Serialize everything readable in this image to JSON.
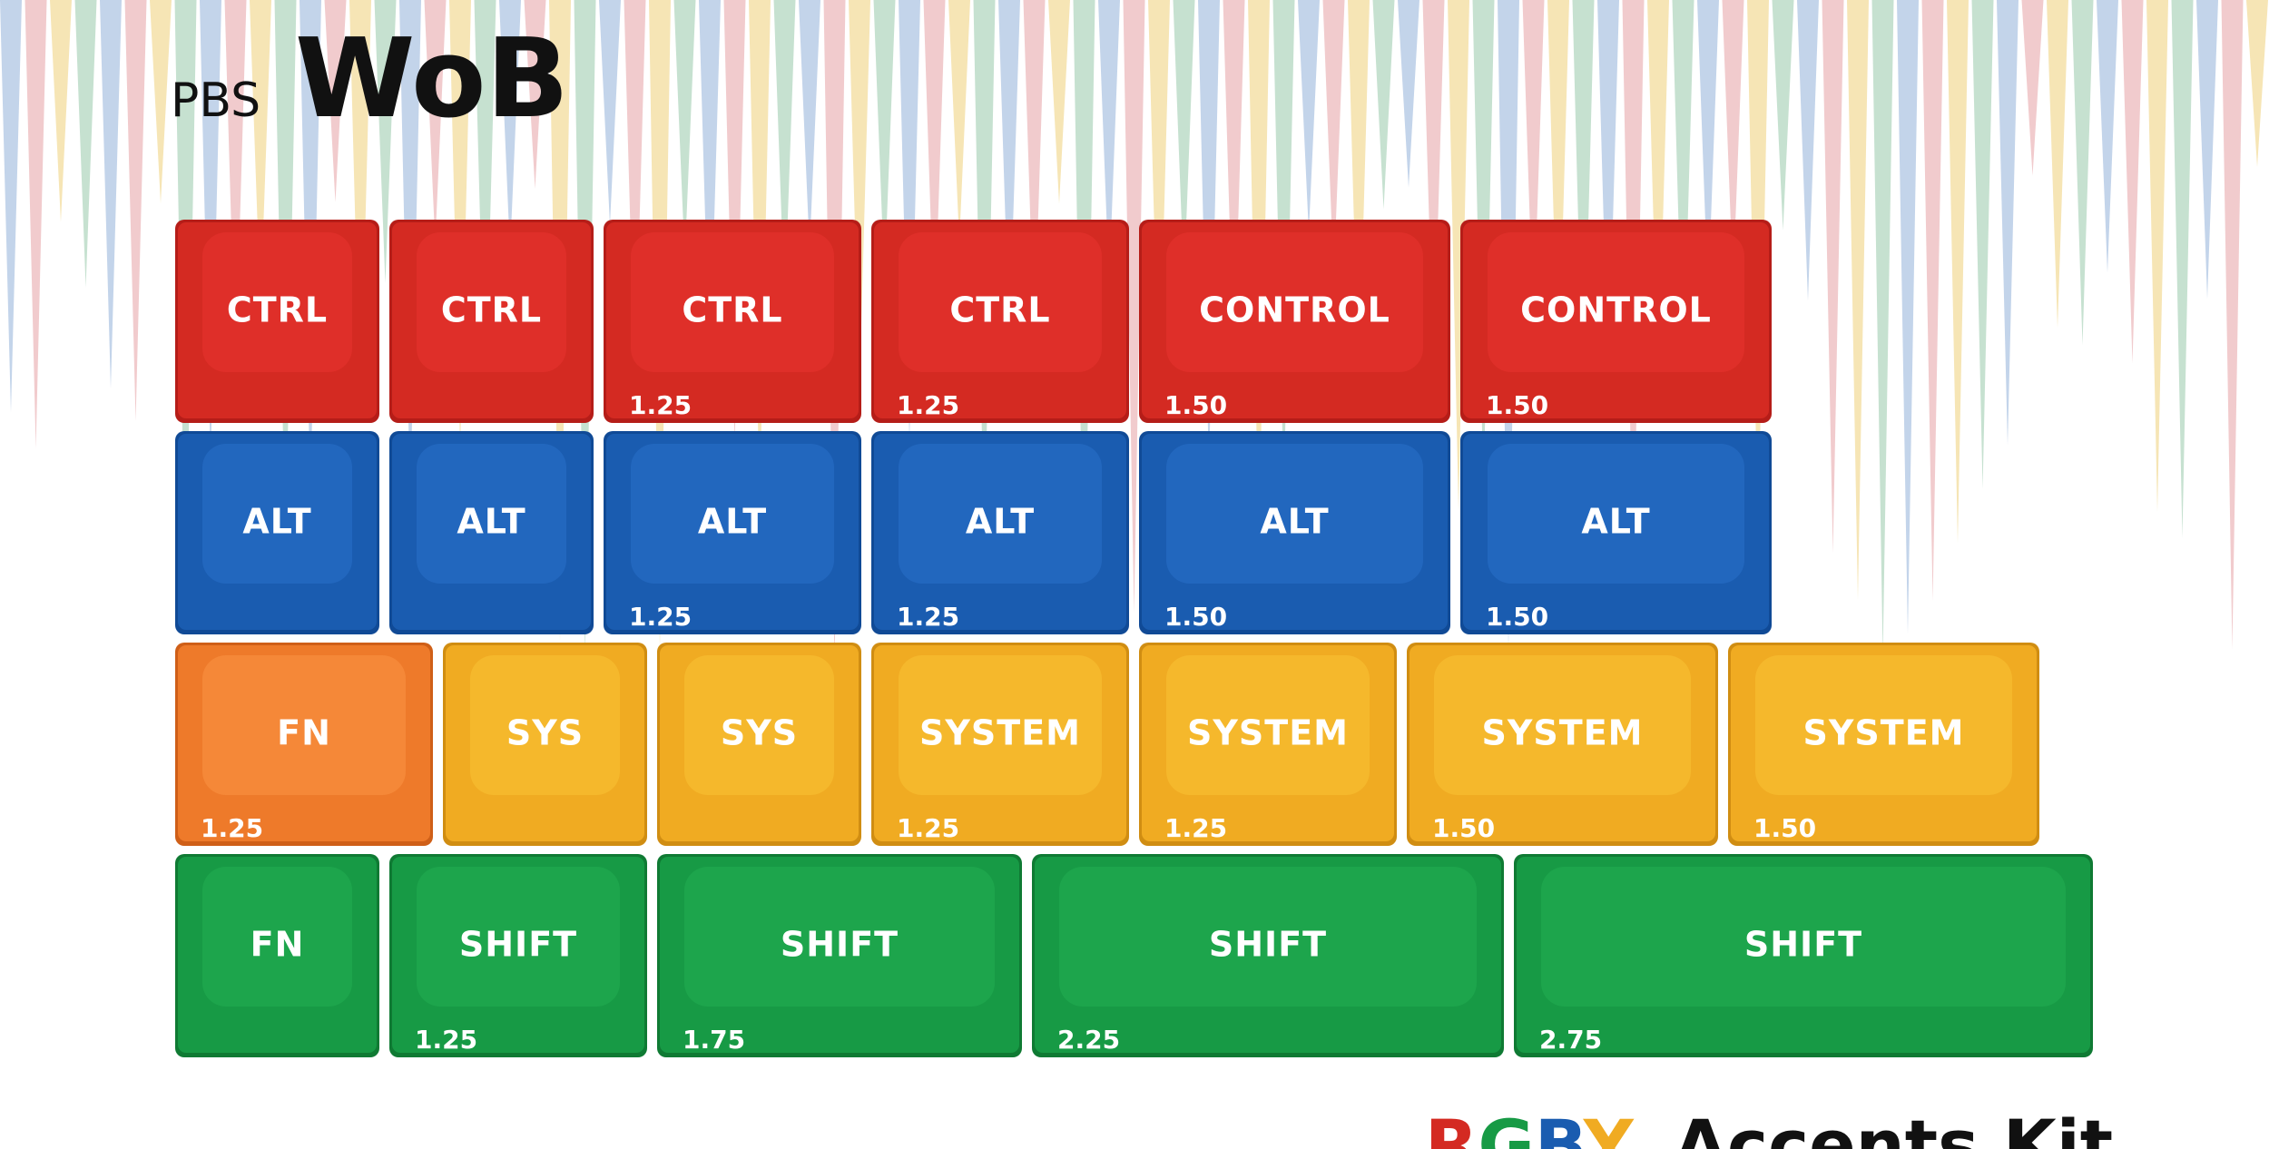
{
  "header": {
    "brand_small": "PBS",
    "brand_large": "WoB"
  },
  "rows": [
    {
      "keys": [
        {
          "label": "CTRL"
        },
        {
          "label": "CTRL"
        },
        {
          "label": "CTRL",
          "size": "1.25"
        },
        {
          "label": "CTRL",
          "size": "1.25"
        },
        {
          "label": "CONTROL",
          "size": "1.50"
        },
        {
          "label": "CONTROL",
          "size": "1.50"
        }
      ]
    },
    {
      "keys": [
        {
          "label": "ALT"
        },
        {
          "label": "ALT"
        },
        {
          "label": "ALT",
          "size": "1.25"
        },
        {
          "label": "ALT",
          "size": "1.25"
        },
        {
          "label": "ALT",
          "size": "1.50"
        },
        {
          "label": "ALT",
          "size": "1.50"
        }
      ]
    },
    {
      "keys": [
        {
          "label": "FN",
          "size": "1.25"
        },
        {
          "label": "SYS"
        },
        {
          "label": "SYS"
        },
        {
          "label": "SYSTEM",
          "size": "1.25"
        },
        {
          "label": "SYSTEM",
          "size": "1.25"
        },
        {
          "label": "SYSTEM",
          "size": "1.50"
        },
        {
          "label": "SYSTEM",
          "size": "1.50"
        }
      ]
    },
    {
      "keys": [
        {
          "label": "FN"
        },
        {
          "label": "SHIFT",
          "size": "1.25"
        },
        {
          "label": "SHIFT",
          "size": "1.75"
        },
        {
          "label": "SHIFT",
          "size": "2.25"
        },
        {
          "label": "SHIFT",
          "size": "2.75"
        }
      ]
    }
  ],
  "kit_name": {
    "accent": "RGBY",
    "rest": "Accents Kit"
  }
}
